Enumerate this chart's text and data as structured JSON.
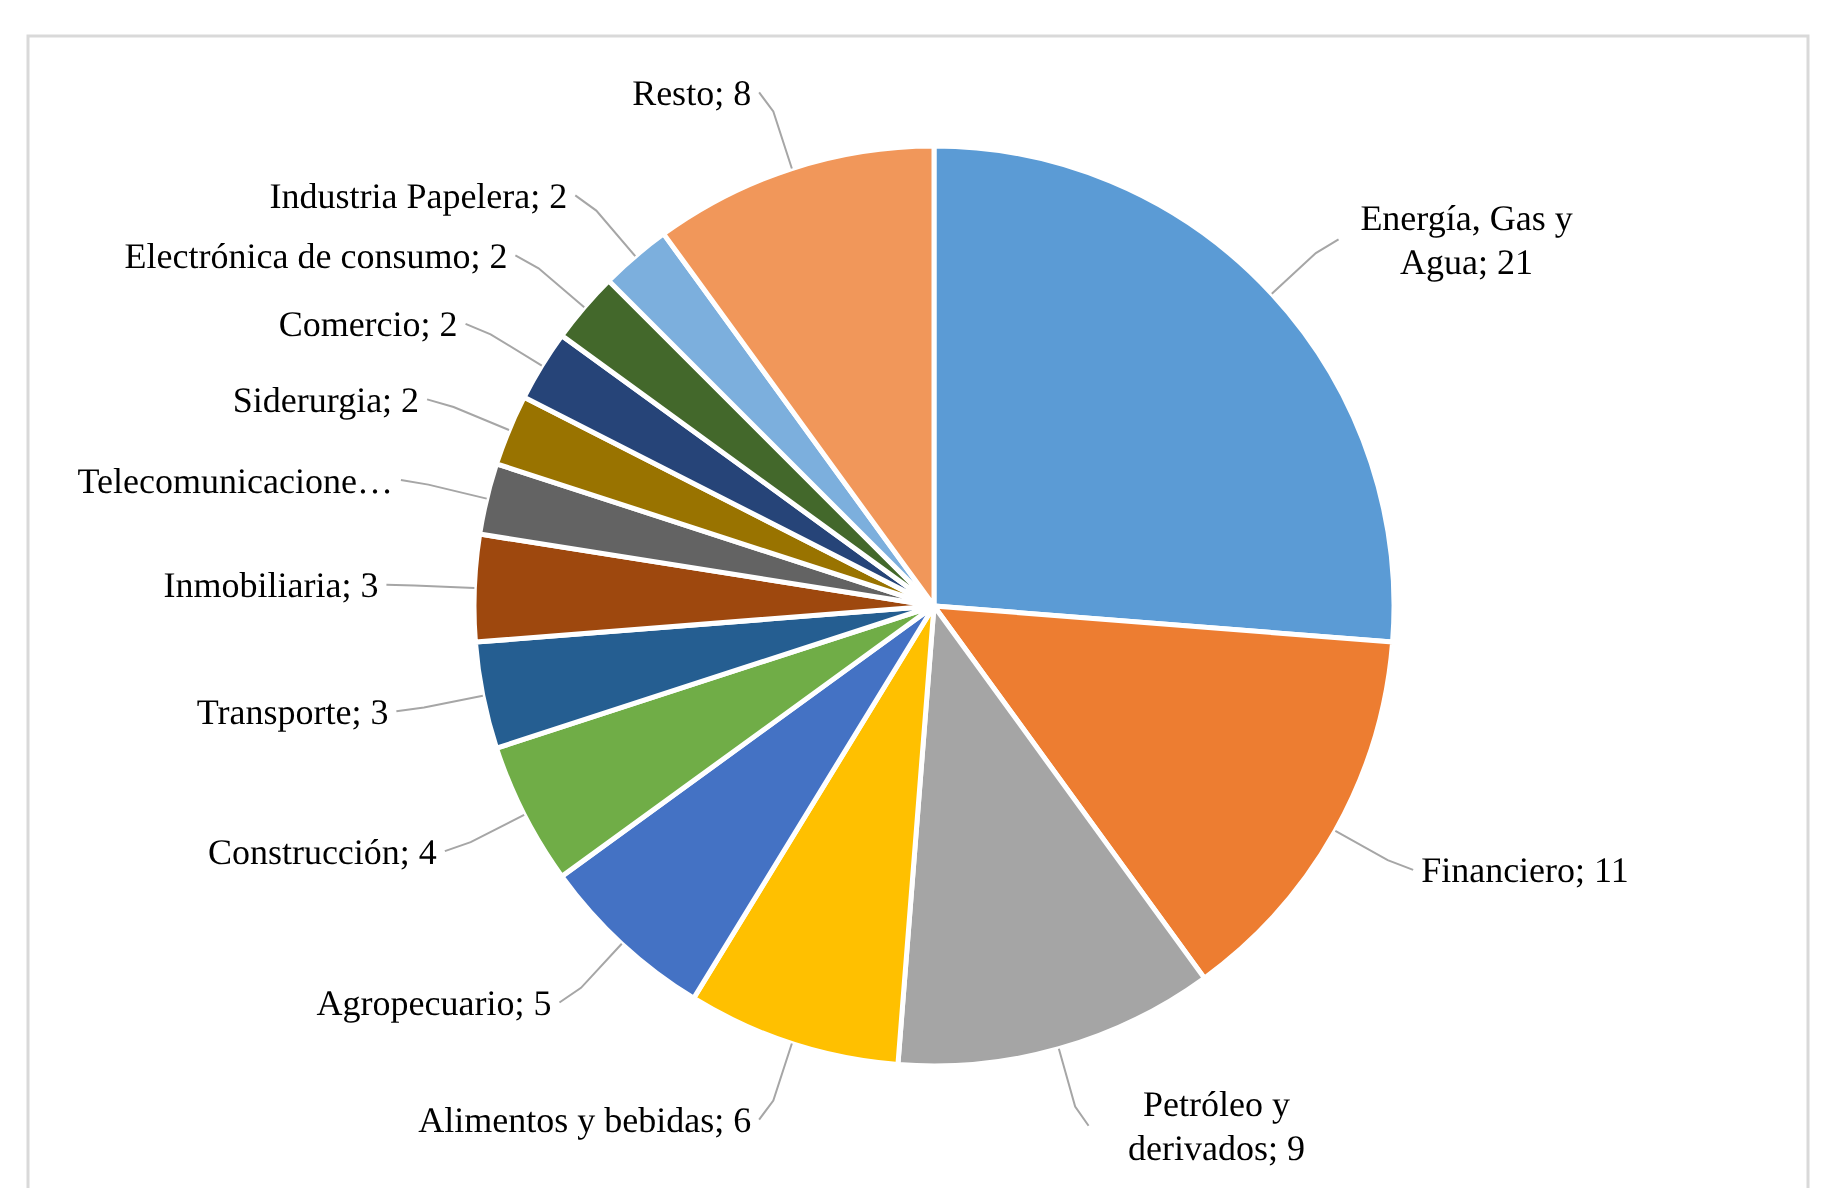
{
  "chart_data": {
    "type": "pie",
    "categories": [
      "Energía, Gas y Agua",
      "Financiero",
      "Petróleo y derivados",
      "Alimentos y bebidas",
      "Agropecuario",
      "Construcción",
      "Transporte",
      "Inmobiliaria",
      "Telecomunicacione…",
      "Siderurgia",
      "Comercio",
      "Electrónica de consumo",
      "Industria Papelera",
      "Resto"
    ],
    "values": [
      21,
      11,
      9,
      6,
      5,
      4,
      3,
      3,
      2,
      2,
      2,
      2,
      2,
      8
    ],
    "value_labels": [
      "21",
      "11",
      "9",
      "6",
      "5",
      "4",
      "3",
      "3",
      null,
      "2",
      "2",
      "2",
      "2",
      "8"
    ],
    "colors": [
      "#5b9bd5",
      "#ed7d31",
      "#a5a5a5",
      "#ffc000",
      "#4472c4",
      "#70ad47",
      "#255e91",
      "#9e480e",
      "#636363",
      "#997300",
      "#264478",
      "#43682b",
      "#7cafdd",
      "#f1975a"
    ]
  }
}
